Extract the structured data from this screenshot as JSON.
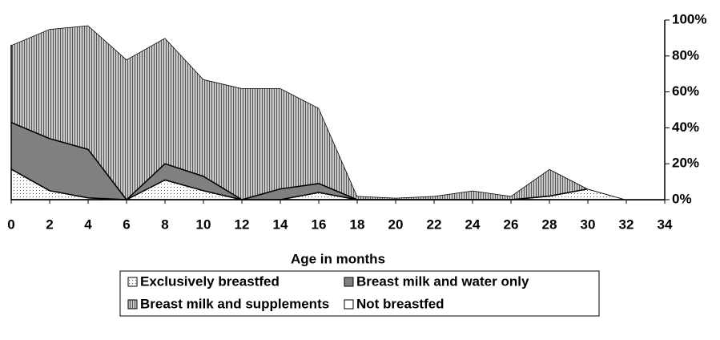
{
  "chart_data": {
    "type": "stacked-area",
    "xlabel": "Age in months",
    "x": [
      0,
      2,
      4,
      6,
      8,
      10,
      12,
      14,
      16,
      18,
      20,
      22,
      24,
      26,
      28,
      30,
      32,
      34
    ],
    "xlim": [
      0,
      34
    ],
    "xticks": [
      0,
      2,
      4,
      6,
      8,
      10,
      12,
      14,
      16,
      18,
      20,
      22,
      24,
      26,
      28,
      30,
      32,
      34
    ],
    "ylim": [
      0,
      100
    ],
    "yticks": [
      {
        "value": 0,
        "label": "0%"
      },
      {
        "value": 20,
        "label": "20%"
      },
      {
        "value": 40,
        "label": "40%"
      },
      {
        "value": 60,
        "label": "60%"
      },
      {
        "value": 80,
        "label": "80%"
      },
      {
        "value": 100,
        "label": "100%"
      }
    ],
    "series": [
      {
        "name": "Exclusively breastfed",
        "color": "#ffffff",
        "values": [
          17,
          5,
          1,
          0,
          11,
          5,
          0,
          0,
          4,
          0,
          0,
          0,
          0,
          0,
          2,
          6,
          0,
          0
        ]
      },
      {
        "name": "Breast milk and water only",
        "color": "#808080",
        "values": [
          26,
          29,
          27,
          0,
          9,
          8,
          0,
          6,
          5,
          0,
          0,
          0,
          0,
          0,
          0,
          0,
          0,
          0
        ]
      },
      {
        "name": "Breast milk and supplements",
        "color": "#b0b0b0",
        "values": [
          43,
          61,
          69,
          78,
          70,
          54,
          62,
          56,
          42,
          2,
          1,
          2,
          5,
          2,
          15,
          0,
          0,
          0
        ]
      },
      {
        "name": "Not breastfed",
        "color": "#ffffff",
        "values": [
          14,
          5,
          3,
          22,
          10,
          33,
          38,
          38,
          49,
          98,
          99,
          98,
          95,
          98,
          83,
          94,
          100,
          100
        ]
      }
    ],
    "legend": "bottom"
  }
}
